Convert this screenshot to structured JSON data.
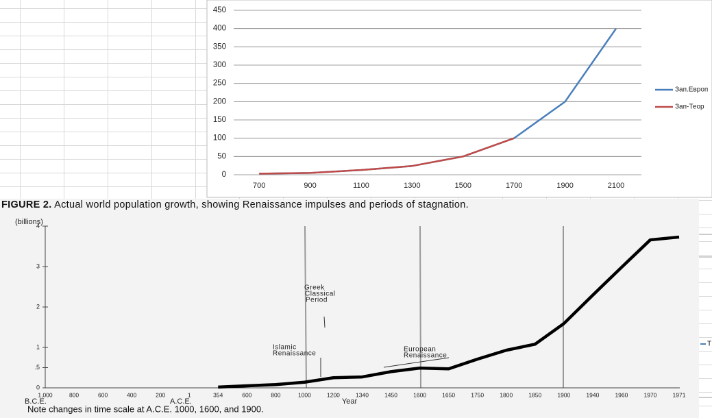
{
  "chart_data": [
    {
      "type": "line",
      "categories": [
        "700",
        "900",
        "1100",
        "1300",
        "1500",
        "1700",
        "1900",
        "2100"
      ],
      "series": [
        {
          "name": "Зап.Европ",
          "color": "#4a7ebb",
          "values": [
            3,
            5,
            13,
            24,
            50,
            100,
            200,
            400
          ]
        },
        {
          "name": "Зап-Теор",
          "color": "#be4b48",
          "values": [
            3,
            5,
            13,
            24,
            50,
            100,
            null,
            null
          ]
        }
      ],
      "ylim": [
        0,
        450
      ],
      "yticks": [
        0,
        50,
        100,
        150,
        200,
        250,
        300,
        350,
        400,
        450
      ],
      "grid": true,
      "legend": "right"
    },
    {
      "type": "line",
      "title_label": "FIGURE 2.",
      "title": "Actual world population growth, showing Renaissance impulses and periods of stagnation.",
      "ylabel": "(billions)",
      "xlabel": "Year",
      "x_sublabels": [
        "B.C.E.",
        "A.C.E."
      ],
      "note": "Note changes in time scale at A.C.E. 1000, 1600, and 1900.",
      "annotations": [
        [
          "Greek",
          "Classical",
          "Period"
        ],
        [
          "Islamic",
          "Renaissance"
        ],
        [
          "European",
          "Renaissance"
        ]
      ],
      "categories": [
        "1,000",
        "800",
        "600",
        "400",
        "200",
        "1",
        "354",
        "600",
        "800",
        "1000",
        "1200",
        "1340",
        "1450",
        "1600",
        "1650",
        "1750",
        "1800",
        "1850",
        "1900",
        "1940",
        "1960",
        "1970",
        "1971"
      ],
      "series": [
        {
          "color": "#000000",
          "values": [
            null,
            null,
            null,
            null,
            null,
            null,
            0.02,
            0.05,
            0.08,
            0.14,
            0.25,
            0.27,
            0.4,
            0.49,
            0.47,
            0.71,
            0.93,
            1.08,
            1.59,
            2.29,
            2.98,
            3.66,
            3.73
          ]
        }
      ],
      "ylim": [
        0,
        4
      ],
      "yticks": [
        0,
        {
          "value": 0.5,
          "label": ".5"
        },
        1,
        2,
        3,
        4
      ],
      "grid": false
    }
  ],
  "sheet": {
    "fragment_text": "T"
  }
}
